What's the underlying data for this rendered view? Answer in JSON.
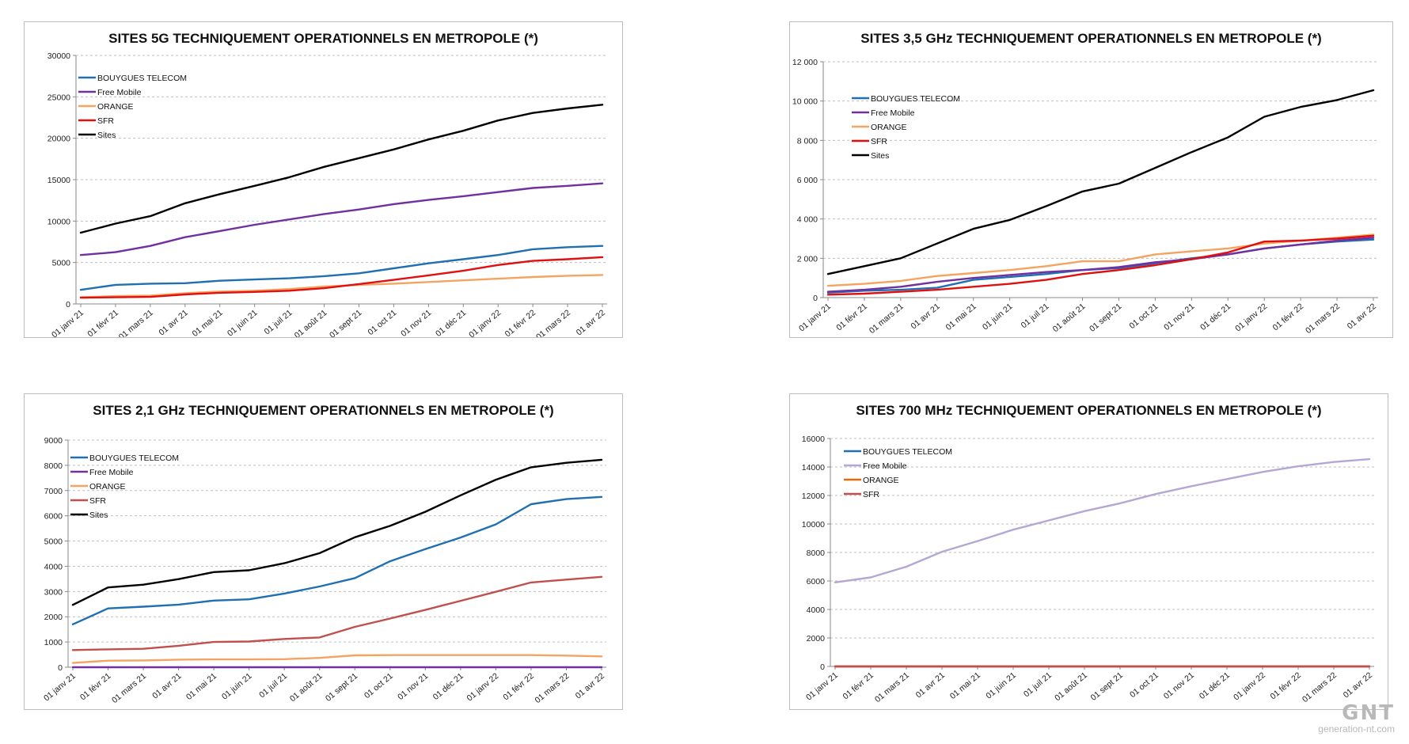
{
  "colors": {
    "bouygues": "#1f6fb2",
    "free": "#7030a0",
    "free_light": "#b4a7d6",
    "orange": "#f4a460",
    "orange_dark": "#e36c09",
    "sfr": "#e01010",
    "sfr_muted": "#c0504d",
    "sites": "#000000",
    "grid": "#bfbfbf"
  },
  "watermark": {
    "logo": "GNT",
    "site": "generation-nt.com"
  },
  "chart_data": [
    {
      "type": "line",
      "title": "SITES 5G TECHNIQUEMENT OPERATIONNELS EN METROPOLE (*)",
      "xlabel": "",
      "ylabel": "",
      "categories": [
        "01 janv 21",
        "01 févr 21",
        "01 mars 21",
        "01 avr 21",
        "01 mai 21",
        "01 juin 21",
        "01 juil 21",
        "01 août 21",
        "01 sept 21",
        "01 oct 21",
        "01 nov 21",
        "01 déc 21",
        "01 janv 22",
        "01 févr 22",
        "01 mars 22",
        "01 avr 22"
      ],
      "ylim": [
        0,
        30000
      ],
      "yticks": [
        0,
        5000,
        10000,
        15000,
        20000,
        25000,
        30000
      ],
      "ytick_labels": [
        "0",
        "5000",
        "10000",
        "15000",
        "20000",
        "25000",
        "30000"
      ],
      "grid": true,
      "legend_position": "top-left",
      "series": [
        {
          "name": "BOUYGUES TELECOM",
          "color": "#1f6fb2",
          "values": [
            1700,
            2300,
            2450,
            2500,
            2800,
            2950,
            3100,
            3350,
            3700,
            4300,
            4900,
            5400,
            5900,
            6600,
            6850,
            7000
          ]
        },
        {
          "name": "Free Mobile",
          "color": "#7030a0",
          "values": [
            5900,
            6250,
            7000,
            8050,
            8800,
            9550,
            10200,
            10850,
            11400,
            12050,
            12550,
            13000,
            13500,
            14000,
            14250,
            14550
          ]
        },
        {
          "name": "ORANGE",
          "color": "#f4a460",
          "values": [
            800,
            950,
            1000,
            1300,
            1500,
            1600,
            1800,
            2100,
            2300,
            2450,
            2650,
            2850,
            3050,
            3250,
            3400,
            3500
          ]
        },
        {
          "name": "SFR",
          "color": "#e01010",
          "values": [
            750,
            800,
            850,
            1150,
            1350,
            1450,
            1600,
            1900,
            2400,
            2900,
            3450,
            4000,
            4700,
            5200,
            5400,
            5650
          ]
        },
        {
          "name": "Sites",
          "color": "#000000",
          "values": [
            8600,
            9700,
            10600,
            12150,
            13250,
            14250,
            15300,
            16550,
            17600,
            18650,
            19850,
            20900,
            22150,
            23050,
            23600,
            24050
          ]
        }
      ]
    },
    {
      "type": "line",
      "title": "SITES 3,5 GHz TECHNIQUEMENT OPERATIONNELS EN METROPOLE (*)",
      "xlabel": "",
      "ylabel": "",
      "categories": [
        "01 janv 21",
        "01 févr 21",
        "01 mars 21",
        "01 avr 21",
        "01 mai 21",
        "01 juin 21",
        "01 juil 21",
        "01 août 21",
        "01 sept 21",
        "01 oct 21",
        "01 nov 21",
        "01 déc 21",
        "01 janv 22",
        "01 févr 22",
        "01 mars 22",
        "01 avr 22"
      ],
      "ylim": [
        0,
        12000
      ],
      "yticks": [
        0,
        2000,
        4000,
        6000,
        8000,
        10000,
        12000
      ],
      "ytick_labels": [
        "0",
        "2 000",
        "4 000",
        "6 000",
        "8 000",
        "10 000",
        "12 000"
      ],
      "grid": true,
      "legend_position": "top-left",
      "series": [
        {
          "name": "BOUYGUES TELECOM",
          "color": "#1f6fb2",
          "values": [
            250,
            350,
            400,
            500,
            900,
            1050,
            1200,
            1400,
            1500,
            1750,
            2000,
            2200,
            2500,
            2700,
            2850,
            2950
          ]
        },
        {
          "name": "Free Mobile",
          "color": "#7030a0",
          "values": [
            300,
            400,
            550,
            800,
            1000,
            1150,
            1300,
            1400,
            1550,
            1800,
            1950,
            2200,
            2500,
            2700,
            2900,
            3050
          ]
        },
        {
          "name": "ORANGE",
          "color": "#f4a460",
          "values": [
            600,
            700,
            850,
            1100,
            1250,
            1400,
            1600,
            1850,
            1850,
            2200,
            2350,
            2500,
            2750,
            2900,
            3050,
            3200
          ]
        },
        {
          "name": "SFR",
          "color": "#e01010",
          "values": [
            150,
            200,
            300,
            400,
            550,
            700,
            900,
            1200,
            1400,
            1650,
            1950,
            2300,
            2850,
            2900,
            3000,
            3150
          ]
        },
        {
          "name": "Sites",
          "color": "#000000",
          "values": [
            1200,
            1600,
            2000,
            2750,
            3500,
            3950,
            4650,
            5400,
            5800,
            6600,
            7400,
            8150,
            9200,
            9700,
            10050,
            10550
          ]
        }
      ]
    },
    {
      "type": "line",
      "title": "SITES 2,1 GHz TECHNIQUEMENT OPERATIONNELS EN METROPOLE (*)",
      "xlabel": "",
      "ylabel": "",
      "categories": [
        "01 janv 21",
        "01 févr 21",
        "01 mars 21",
        "01 avr 21",
        "01 mai 21",
        "01 juin 21",
        "01 juil 21",
        "01 août 21",
        "01 sept 21",
        "01 oct 21",
        "01 nov 21",
        "01 déc 21",
        "01 janv 22",
        "01 févr 22",
        "01 mars 22",
        "01 avr 22"
      ],
      "ylim": [
        0,
        9000
      ],
      "yticks": [
        0,
        1000,
        2000,
        3000,
        4000,
        5000,
        6000,
        7000,
        8000,
        9000
      ],
      "ytick_labels": [
        "0",
        "1000",
        "2000",
        "3000",
        "4000",
        "5000",
        "6000",
        "7000",
        "8000",
        "9000"
      ],
      "grid": true,
      "legend_position": "top-left",
      "series": [
        {
          "name": "BOUYGUES TELECOM",
          "color": "#1f6fb2",
          "values": [
            1700,
            2330,
            2400,
            2480,
            2640,
            2690,
            2920,
            3200,
            3530,
            4200,
            4680,
            5140,
            5660,
            6460,
            6660,
            6750
          ]
        },
        {
          "name": "Free Mobile",
          "color": "#7030a0",
          "values": [
            0,
            0,
            0,
            0,
            0,
            0,
            0,
            0,
            0,
            0,
            0,
            0,
            0,
            0,
            0,
            0
          ]
        },
        {
          "name": "ORANGE",
          "color": "#f4a460",
          "values": [
            170,
            260,
            270,
            300,
            310,
            310,
            320,
            370,
            470,
            480,
            480,
            480,
            480,
            480,
            460,
            430
          ]
        },
        {
          "name": "SFR",
          "color": "#c0504d",
          "values": [
            680,
            710,
            730,
            850,
            1000,
            1020,
            1120,
            1180,
            1600,
            1930,
            2270,
            2630,
            2990,
            3360,
            3470,
            3580
          ]
        },
        {
          "name": "Sites",
          "color": "#000000",
          "values": [
            2470,
            3160,
            3270,
            3490,
            3770,
            3840,
            4120,
            4520,
            5150,
            5600,
            6160,
            6810,
            7430,
            7920,
            8100,
            8220
          ]
        }
      ]
    },
    {
      "type": "line",
      "title": "SITES 700 MHz TECHNIQUEMENT OPERATIONNELS EN METROPOLE (*)",
      "xlabel": "",
      "ylabel": "",
      "categories": [
        "01 janv 21",
        "01 févr 21",
        "01 mars 21",
        "01 avr 21",
        "01 mai 21",
        "01 juin 21",
        "01 juil 21",
        "01 août 21",
        "01 sept 21",
        "01 oct 21",
        "01 nov 21",
        "01 déc 21",
        "01 janv 22",
        "01 févr 22",
        "01 mars 22",
        "01 avr 22"
      ],
      "ylim": [
        0,
        16000
      ],
      "yticks": [
        0,
        2000,
        4000,
        6000,
        8000,
        10000,
        12000,
        14000,
        16000
      ],
      "ytick_labels": [
        "0",
        "2000",
        "4000",
        "6000",
        "8000",
        "10000",
        "12000",
        "14000",
        "16000"
      ],
      "grid": true,
      "legend_position": "top-left",
      "series": [
        {
          "name": "BOUYGUES TELECOM",
          "color": "#1f6fb2",
          "values": [
            0,
            0,
            0,
            0,
            0,
            0,
            0,
            0,
            0,
            0,
            0,
            0,
            0,
            0,
            0,
            0
          ]
        },
        {
          "name": "Free Mobile",
          "color": "#b4a7d6",
          "values": [
            5900,
            6250,
            7000,
            8050,
            8800,
            9600,
            10250,
            10900,
            11450,
            12100,
            12650,
            13150,
            13650,
            14050,
            14350,
            14550
          ]
        },
        {
          "name": "ORANGE",
          "color": "#e36c09",
          "values": [
            0,
            0,
            0,
            0,
            0,
            0,
            0,
            0,
            0,
            0,
            0,
            0,
            0,
            0,
            0,
            0
          ]
        },
        {
          "name": "SFR",
          "color": "#c0504d",
          "values": [
            0,
            0,
            0,
            0,
            0,
            0,
            0,
            0,
            0,
            0,
            0,
            0,
            0,
            0,
            0,
            0
          ]
        }
      ]
    }
  ]
}
